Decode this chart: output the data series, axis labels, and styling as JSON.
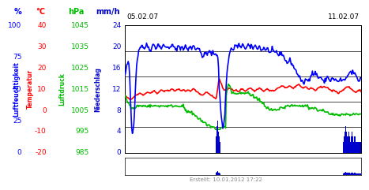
{
  "title_left": "05.02.07",
  "title_right": "11.02.07",
  "footer": "Erstellt: 10.01.2012 17:22",
  "bg_color": "#ffffff",
  "plot_area_color": "#ffffff",
  "left_labels": {
    "humidity_label": "Luftfeuchtigkeit",
    "humidity_color": "#0000ff",
    "temp_label": "Temperatur",
    "temp_color": "#ff0000",
    "pressure_label": "Luftdruck",
    "pressure_color": "#00bb00",
    "precip_label": "Niederschlag",
    "precip_color": "#0000cc"
  },
  "units": {
    "humidity": "%",
    "humidity_color": "#0000ff",
    "temp": "°C",
    "temp_color": "#ff0000",
    "pressure": "hPa",
    "pressure_color": "#00bb00",
    "precip": "mm/h",
    "precip_color": "#0000cc"
  },
  "axis_ticks": {
    "humidity": [
      100,
      75,
      50,
      25,
      0
    ],
    "temp": [
      40,
      30,
      20,
      10,
      0,
      -10,
      -20
    ],
    "pressure": [
      1045,
      1035,
      1025,
      1015,
      1005,
      995,
      985
    ],
    "precip": [
      24,
      20,
      16,
      12,
      8,
      4,
      0
    ]
  },
  "y_min": 0,
  "y_max": 100,
  "hum_min": 0,
  "hum_max": 100,
  "temp_min": -20,
  "temp_max": 40,
  "pres_min": 985,
  "pres_max": 1045,
  "precip_min": 0,
  "precip_max": 24,
  "grid_lines_at": [
    0,
    20,
    40,
    60,
    80,
    100
  ],
  "grid_color": "#000000",
  "grid_lw": 0.5,
  "line_width": 1.2,
  "n_points": 336,
  "humidity_data": [
    60,
    62,
    65,
    68,
    70,
    72,
    68,
    60,
    45,
    30,
    18,
    15,
    18,
    25,
    35,
    50,
    62,
    70,
    75,
    78,
    80,
    82,
    83,
    84,
    85,
    84,
    83,
    82,
    82,
    83,
    84,
    85,
    84,
    83,
    82,
    81,
    80,
    82,
    83,
    84,
    85,
    85,
    84,
    83,
    82,
    83,
    84,
    85,
    85,
    84,
    83,
    82,
    82,
    83,
    84,
    85,
    84,
    83,
    82,
    83,
    83,
    84,
    83,
    82,
    82,
    83,
    84,
    85,
    84,
    83,
    82,
    81,
    80,
    82,
    83,
    84,
    84,
    83,
    82,
    83,
    83,
    82,
    81,
    82,
    83,
    84,
    83,
    82,
    81,
    80,
    82,
    83,
    84,
    83,
    82,
    83,
    84,
    84,
    83,
    82,
    81,
    82,
    83,
    82,
    81,
    80,
    79,
    78,
    77,
    76,
    75,
    76,
    77,
    78,
    79,
    78,
    77,
    78,
    79,
    80,
    79,
    78,
    77,
    78,
    79,
    78,
    77,
    78,
    78,
    77,
    76,
    75,
    55,
    45,
    38,
    30,
    25,
    20,
    20,
    22,
    28,
    40,
    52,
    60,
    68,
    72,
    75,
    78,
    80,
    82,
    82,
    81,
    80,
    82,
    83,
    84,
    85,
    84,
    83,
    84,
    85,
    84,
    83,
    82,
    83,
    84,
    85,
    84,
    83,
    82,
    82,
    83,
    84,
    85,
    84,
    83,
    82,
    83,
    84,
    83,
    82,
    83,
    84,
    84,
    83,
    82,
    82,
    83,
    84,
    83,
    82,
    81,
    80,
    81,
    82,
    83,
    82,
    81,
    80,
    81,
    82,
    81,
    80,
    79,
    78,
    79,
    80,
    81,
    80,
    79,
    78,
    79,
    80,
    79,
    78,
    77,
    76,
    77,
    78,
    79,
    78,
    77,
    76,
    75,
    74,
    73,
    72,
    71,
    70,
    71,
    72,
    73,
    72,
    71,
    70,
    69,
    68,
    67,
    66,
    65,
    64,
    63,
    62,
    61,
    60,
    59,
    58,
    57,
    56,
    55,
    54,
    55,
    56,
    57,
    58,
    57,
    56,
    57,
    58,
    59,
    60,
    61,
    62,
    63,
    62,
    61,
    62,
    63,
    62,
    61,
    60,
    59,
    58,
    59,
    60,
    59,
    58,
    57,
    56,
    55,
    56,
    57,
    58,
    59,
    60,
    59,
    58,
    57,
    56,
    57,
    58,
    59,
    58,
    57,
    56,
    57,
    58,
    57,
    56,
    55,
    56,
    57,
    58,
    57,
    56,
    57,
    58,
    57,
    56,
    57,
    58,
    59,
    60,
    61,
    62,
    63,
    64,
    63,
    62,
    63,
    64,
    63,
    62,
    61,
    60,
    59,
    58,
    57,
    56,
    57,
    58,
    59
  ],
  "temp_data": [
    7.0,
    6.8,
    6.5,
    6.2,
    6.0,
    5.8,
    5.5,
    5.2,
    5.0,
    5.2,
    5.5,
    5.8,
    6.0,
    6.2,
    6.5,
    6.8,
    7.0,
    7.2,
    7.5,
    7.5,
    7.8,
    8.0,
    8.0,
    7.8,
    7.5,
    7.2,
    7.0,
    7.2,
    7.5,
    7.8,
    8.0,
    8.2,
    8.5,
    8.5,
    8.2,
    8.0,
    7.8,
    8.0,
    8.2,
    8.5,
    8.8,
    9.0,
    9.0,
    8.8,
    8.5,
    8.2,
    8.0,
    8.2,
    8.5,
    8.8,
    9.0,
    9.2,
    9.5,
    9.5,
    9.2,
    9.0,
    8.8,
    9.0,
    9.2,
    9.5,
    9.5,
    9.2,
    9.0,
    9.2,
    9.5,
    9.8,
    10.0,
    10.0,
    9.8,
    9.5,
    9.2,
    9.0,
    9.2,
    9.5,
    9.8,
    10.0,
    10.0,
    9.8,
    9.5,
    9.2,
    9.0,
    9.2,
    9.5,
    9.5,
    9.2,
    9.0,
    8.8,
    9.0,
    9.2,
    9.5,
    9.5,
    9.2,
    9.0,
    9.2,
    9.5,
    9.8,
    10.0,
    10.0,
    9.8,
    9.5,
    9.2,
    9.0,
    8.8,
    8.5,
    8.2,
    8.0,
    7.8,
    7.5,
    7.2,
    7.0,
    7.2,
    7.5,
    7.8,
    8.0,
    8.2,
    8.5,
    8.5,
    8.2,
    8.0,
    7.8,
    7.5,
    7.2,
    7.0,
    6.8,
    6.5,
    6.2,
    6.0,
    5.8,
    5.5,
    5.2,
    8.0,
    10.0,
    13.0,
    15.0,
    14.5,
    13.5,
    12.5,
    11.5,
    10.5,
    10.0,
    9.5,
    9.0,
    9.2,
    9.5,
    9.8,
    10.0,
    10.2,
    10.5,
    10.5,
    10.2,
    10.0,
    9.8,
    9.5,
    9.2,
    9.0,
    9.2,
    9.5,
    9.5,
    9.2,
    9.0,
    8.8,
    9.0,
    9.2,
    9.5,
    9.8,
    10.0,
    10.0,
    9.8,
    9.5,
    9.2,
    9.0,
    9.2,
    9.5,
    9.8,
    10.0,
    10.2,
    10.5,
    10.5,
    10.2,
    10.0,
    9.8,
    9.5,
    9.2,
    9.0,
    9.2,
    9.5,
    9.8,
    10.0,
    10.2,
    10.5,
    10.5,
    10.2,
    10.0,
    9.8,
    9.5,
    9.2,
    9.0,
    9.2,
    9.5,
    9.8,
    10.0,
    10.0,
    9.8,
    9.5,
    9.2,
    9.0,
    9.2,
    9.5,
    9.5,
    9.2,
    9.0,
    9.2,
    9.5,
    9.8,
    10.0,
    10.2,
    10.5,
    10.5,
    10.8,
    11.0,
    11.2,
    11.5,
    11.5,
    11.2,
    11.0,
    10.8,
    10.5,
    10.5,
    10.8,
    11.0,
    11.2,
    11.5,
    11.5,
    11.2,
    11.0,
    10.8,
    10.5,
    10.5,
    10.5,
    10.8,
    11.0,
    11.2,
    11.5,
    11.8,
    12.0,
    12.0,
    11.8,
    11.5,
    11.2,
    11.0,
    10.8,
    10.5,
    10.5,
    10.8,
    11.0,
    11.0,
    10.8,
    10.5,
    10.2,
    10.0,
    10.0,
    10.2,
    10.5,
    10.5,
    10.2,
    10.0,
    9.8,
    9.5,
    9.2,
    9.5,
    9.8,
    10.0,
    10.2,
    10.5,
    10.8,
    11.0,
    11.0,
    10.8,
    10.5,
    10.8,
    11.0,
    11.2,
    11.0,
    10.8,
    10.5,
    10.5,
    10.5,
    10.2,
    10.0,
    9.8,
    9.5,
    9.2,
    9.0,
    9.2,
    9.5,
    9.5,
    9.2,
    9.0,
    8.8,
    8.5,
    8.2,
    8.0,
    8.2,
    8.5,
    8.8,
    9.0,
    9.2,
    9.5,
    9.8,
    10.0,
    10.2,
    10.5,
    10.5,
    10.8,
    11.0,
    11.0,
    10.8,
    10.5,
    10.2,
    10.0,
    9.8,
    9.5,
    9.2,
    9.0,
    8.8,
    8.5,
    8.5,
    8.8,
    9.0,
    9.2,
    9.5,
    9.5,
    9.2,
    9.0
  ],
  "pressure_data": [
    1012,
    1012,
    1011,
    1010,
    1009,
    1008,
    1008,
    1007,
    1007,
    1006,
    1006,
    1006,
    1006,
    1006,
    1006,
    1006,
    1006,
    1007,
    1007,
    1007,
    1007,
    1007,
    1007,
    1007,
    1007,
    1007,
    1007,
    1007,
    1007,
    1007,
    1007,
    1007,
    1007,
    1007,
    1007,
    1007,
    1007,
    1007,
    1007,
    1007,
    1007,
    1007,
    1007,
    1007,
    1007,
    1007,
    1007,
    1007,
    1007,
    1007,
    1007,
    1007,
    1007,
    1007,
    1007,
    1007,
    1007,
    1007,
    1007,
    1007,
    1007,
    1007,
    1007,
    1007,
    1007,
    1007,
    1007,
    1007,
    1007,
    1007,
    1007,
    1007,
    1007,
    1007,
    1007,
    1007,
    1007,
    1007,
    1007,
    1007,
    1007,
    1007,
    1007,
    1007,
    1006,
    1006,
    1005,
    1005,
    1004,
    1004,
    1004,
    1004,
    1004,
    1004,
    1004,
    1004,
    1003,
    1003,
    1003,
    1003,
    1002,
    1002,
    1002,
    1002,
    1001,
    1001,
    1001,
    1001,
    1000,
    1000,
    1000,
    999,
    999,
    999,
    999,
    999,
    998,
    998,
    998,
    998,
    998,
    998,
    997,
    997,
    997,
    997,
    997,
    997,
    996,
    996,
    996,
    996,
    996,
    996,
    996,
    996,
    996,
    997,
    997,
    997,
    997,
    997,
    997,
    997,
    1012,
    1014,
    1016,
    1017,
    1017,
    1016,
    1015,
    1014,
    1013,
    1013,
    1013,
    1013,
    1013,
    1013,
    1013,
    1013,
    1013,
    1013,
    1013,
    1013,
    1013,
    1013,
    1013,
    1013,
    1013,
    1013,
    1013,
    1013,
    1013,
    1013,
    1013,
    1013,
    1013,
    1013,
    1012,
    1012,
    1012,
    1012,
    1012,
    1011,
    1011,
    1011,
    1011,
    1011,
    1010,
    1010,
    1010,
    1010,
    1009,
    1009,
    1009,
    1008,
    1008,
    1008,
    1007,
    1007,
    1007,
    1006,
    1006,
    1006,
    1006,
    1005,
    1005,
    1005,
    1005,
    1005,
    1005,
    1005,
    1005,
    1005,
    1005,
    1005,
    1005,
    1005,
    1005,
    1005,
    1006,
    1006,
    1006,
    1006,
    1006,
    1006,
    1006,
    1006,
    1007,
    1007,
    1007,
    1007,
    1007,
    1007,
    1007,
    1007,
    1007,
    1007,
    1007,
    1007,
    1007,
    1007,
    1007,
    1007,
    1007,
    1007,
    1007,
    1007,
    1007,
    1007,
    1007,
    1007,
    1007,
    1007,
    1007,
    1007,
    1007,
    1007,
    1007,
    1007,
    1007,
    1006,
    1006,
    1006,
    1006,
    1006,
    1006,
    1006,
    1006,
    1006,
    1006,
    1006,
    1005,
    1005,
    1005,
    1005,
    1005,
    1005,
    1005,
    1005,
    1005,
    1005,
    1005,
    1004,
    1004,
    1004,
    1004,
    1004,
    1004,
    1003,
    1003,
    1003,
    1003,
    1003,
    1003,
    1003,
    1003,
    1003,
    1003,
    1003,
    1003,
    1003,
    1003,
    1003,
    1003,
    1003,
    1003,
    1003,
    1003,
    1003,
    1003,
    1003,
    1003,
    1003,
    1003,
    1003,
    1003,
    1003,
    1003,
    1003,
    1003,
    1003,
    1003,
    1003,
    1003,
    1003,
    1003,
    1003,
    1003,
    1003,
    1003,
    1003,
    1003,
    1003,
    1003,
    1003
  ],
  "precip_spike_indices": [
    130,
    131,
    132,
    133,
    134,
    135,
    310,
    311,
    312,
    313,
    314,
    315,
    316,
    317,
    318,
    319,
    320,
    321,
    322,
    323,
    324,
    325,
    326,
    327,
    328,
    329,
    330,
    331,
    332,
    333,
    334,
    335
  ],
  "precip_spike_values": [
    3,
    5,
    6,
    4,
    3,
    2,
    2,
    3,
    4,
    5,
    4,
    3,
    2,
    3,
    4,
    3,
    2,
    3,
    4,
    3,
    2,
    2,
    3,
    2,
    2,
    2,
    2,
    2,
    2,
    2,
    2,
    2
  ]
}
